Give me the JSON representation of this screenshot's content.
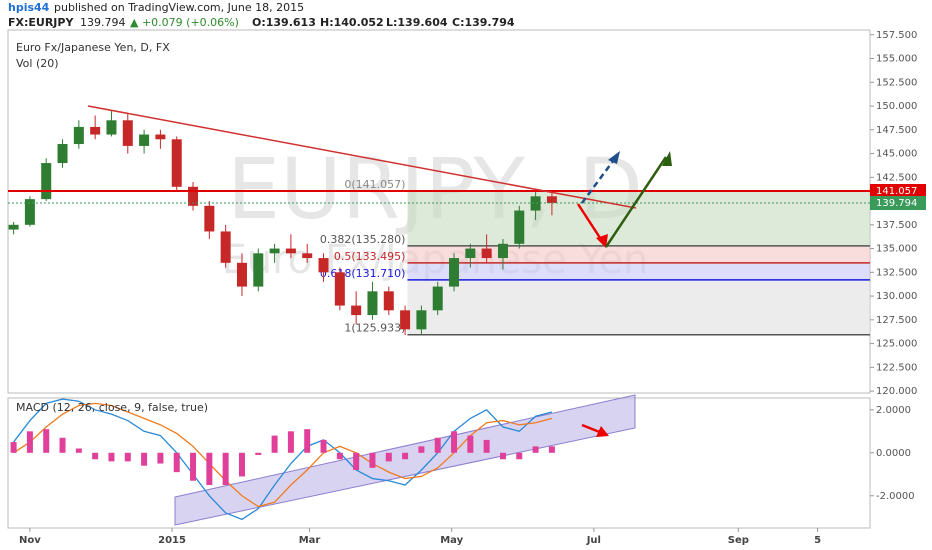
{
  "header": {
    "user": "hpis44",
    "published": "published on TradingView.com, June 18, 2015",
    "symbol": "FX:EURJPY",
    "last": "139.794",
    "change": "▲ +0.079 (+0.06%)",
    "open": "O:139.613",
    "high": "H:140.052",
    "low": "L:139.604",
    "close": "C:139.794"
  },
  "chart_data": [
    {
      "type": "candlestick",
      "title": "Euro Fx/Japanese Yen, D, FX",
      "subtitle": "Vol (20)",
      "watermark": "EURJPY, D",
      "watermark_sub": "Euro Fx/Japanese Yen",
      "up_color": "#2e7d32",
      "down_color": "#c62828",
      "x": [
        -7,
        0,
        7,
        14,
        21,
        28,
        35,
        42,
        49,
        56,
        63,
        70,
        77,
        84,
        91,
        98,
        105,
        112,
        119,
        126,
        133,
        140,
        147,
        154,
        161,
        168,
        175,
        182,
        189,
        196,
        203,
        210,
        217,
        224
      ],
      "open": [
        137.0,
        137.5,
        140.2,
        144.0,
        146.0,
        147.8,
        147.0,
        148.5,
        145.8,
        147.0,
        146.5,
        141.5,
        139.5,
        136.8,
        133.5,
        131.0,
        134.5,
        135.0,
        134.5,
        134.0,
        132.5,
        129.0,
        128.0,
        130.5,
        128.5,
        126.5,
        128.5,
        131.0,
        134.0,
        135.0,
        134.0,
        135.5,
        139.0,
        140.5
      ],
      "high": [
        137.8,
        140.5,
        144.5,
        146.5,
        148.5,
        149.0,
        149.5,
        149.2,
        147.5,
        147.5,
        146.8,
        142.0,
        140.0,
        137.5,
        134.5,
        135.0,
        135.5,
        136.5,
        135.5,
        134.5,
        133.0,
        130.5,
        131.5,
        131.0,
        129.0,
        129.0,
        131.5,
        134.5,
        135.5,
        136.5,
        136.0,
        139.5,
        141.1,
        141.0
      ],
      "low": [
        136.5,
        137.3,
        140.0,
        143.5,
        145.5,
        146.5,
        146.8,
        145.0,
        145.0,
        145.5,
        141.0,
        139.0,
        136.0,
        133.0,
        130.0,
        130.5,
        133.5,
        134.0,
        133.5,
        131.5,
        128.5,
        127.0,
        127.5,
        128.0,
        125.9,
        126.0,
        128.0,
        130.5,
        133.0,
        133.5,
        132.8,
        135.0,
        138.0,
        138.5
      ],
      "close": [
        137.5,
        140.2,
        144.0,
        146.0,
        147.8,
        147.0,
        148.5,
        145.8,
        147.0,
        146.5,
        141.5,
        139.5,
        136.8,
        133.5,
        131.0,
        134.5,
        135.0,
        134.5,
        134.0,
        132.5,
        129.0,
        128.0,
        130.5,
        128.5,
        126.5,
        128.5,
        131.0,
        134.0,
        135.0,
        134.0,
        135.5,
        139.0,
        140.5,
        139.8
      ],
      "xlim": [
        -9.4,
        360.5
      ],
      "ylim": [
        119.8,
        158.0
      ],
      "yticks": [
        {
          "value": 120,
          "label": "120.000"
        },
        {
          "value": 122.5,
          "label": "122.500"
        },
        {
          "value": 125,
          "label": "125.000"
        },
        {
          "value": 127.5,
          "label": "127.500"
        },
        {
          "value": 130,
          "label": "130.000"
        },
        {
          "value": 132.5,
          "label": "132.500"
        },
        {
          "value": 135,
          "label": "135.000"
        },
        {
          "value": 137.5,
          "label": "137.500"
        },
        {
          "value": 140,
          "label": "140.000"
        },
        {
          "value": 142.5,
          "label": "142.500"
        },
        {
          "value": 145,
          "label": "145.000"
        },
        {
          "value": 147.5,
          "label": "147.500"
        },
        {
          "value": 150,
          "label": "150.000"
        },
        {
          "value": 152.5,
          "label": "152.500"
        },
        {
          "value": 155,
          "label": "155.000"
        },
        {
          "value": 157.5,
          "label": "157.500"
        }
      ],
      "fib_levels": [
        {
          "value": 141.057,
          "label": "0(141.057)",
          "color": "#888888",
          "zone": "#c8dcc0"
        },
        {
          "value": 135.28,
          "label": "0.382(135.280)",
          "color": "#555555",
          "zone": "#f5c6c6"
        },
        {
          "value": 133.495,
          "label": "0.5(133.495)",
          "color": "#c62828",
          "zone": "#c6c8f5"
        },
        {
          "value": 131.71,
          "label": "0.618(131.710)",
          "color": "#1a1adc",
          "zone": "#e0e0e0"
        },
        {
          "value": 125.933,
          "label": "1(125.933)",
          "color": "#555555"
        }
      ],
      "price_lines": [
        {
          "value": 141.057,
          "label": "141.057",
          "color": "#e00000"
        },
        {
          "value": 139.794,
          "label": "139.794",
          "color": "#3a9a5a"
        }
      ]
    },
    {
      "type": "macd",
      "title": "MACD (12, 26, close, 9, false, true)",
      "x": [
        -7,
        0,
        7,
        14,
        21,
        28,
        35,
        42,
        49,
        56,
        63,
        70,
        77,
        84,
        91,
        98,
        105,
        112,
        119,
        126,
        133,
        140,
        147,
        154,
        161,
        168,
        175,
        182,
        189,
        196,
        203,
        210,
        217,
        224
      ],
      "series": [
        {
          "name": "MACD",
          "color": "#2a8ad8",
          "values": [
            0.5,
            1.5,
            2.3,
            2.5,
            2.4,
            2.0,
            1.8,
            1.5,
            1.0,
            0.8,
            0.0,
            -1.0,
            -2.0,
            -2.8,
            -3.1,
            -2.6,
            -1.5,
            -0.5,
            0.3,
            0.6,
            0.0,
            -0.8,
            -1.2,
            -1.3,
            -1.5,
            -0.8,
            0.0,
            1.0,
            1.6,
            2.0,
            1.2,
            1.0,
            1.7,
            1.9
          ]
        },
        {
          "name": "Signal",
          "color": "#f07b1f",
          "values": [
            0.0,
            0.5,
            1.2,
            1.8,
            2.2,
            2.3,
            2.2,
            1.9,
            1.6,
            1.3,
            0.9,
            0.3,
            -0.5,
            -1.3,
            -2.0,
            -2.5,
            -2.3,
            -1.5,
            -0.8,
            0.0,
            0.3,
            0.0,
            -0.5,
            -0.9,
            -1.2,
            -1.1,
            -0.7,
            0.0,
            0.8,
            1.4,
            1.5,
            1.3,
            1.4,
            1.6
          ]
        },
        {
          "name": "Histogram",
          "color": "#e0409a",
          "values": [
            0.5,
            1.0,
            1.1,
            0.7,
            0.2,
            -0.3,
            -0.4,
            -0.4,
            -0.6,
            -0.5,
            -0.9,
            -1.3,
            -1.5,
            -1.5,
            -1.1,
            -0.1,
            0.8,
            1.0,
            1.1,
            0.6,
            -0.3,
            -0.8,
            -0.7,
            -0.4,
            -0.3,
            0.3,
            0.7,
            1.0,
            0.8,
            0.6,
            -0.3,
            -0.3,
            0.3,
            0.3
          ]
        }
      ],
      "xlim": [
        -9.4,
        360.5
      ],
      "ylim": [
        -3.5,
        2.55
      ],
      "yticks": [
        {
          "value": 2,
          "label": "2.0000"
        },
        {
          "value": 0,
          "label": "0.0000"
        },
        {
          "value": -2,
          "label": "-2.0000"
        }
      ],
      "xticks": [
        {
          "value": 0,
          "label": "Nov"
        },
        {
          "value": 61,
          "label": "2015"
        },
        {
          "value": 120,
          "label": "Mar"
        },
        {
          "value": 181,
          "label": "May"
        },
        {
          "value": 242,
          "label": "Jul"
        },
        {
          "value": 304,
          "label": "Sep"
        },
        {
          "value": 338,
          "label": "5"
        }
      ]
    }
  ]
}
